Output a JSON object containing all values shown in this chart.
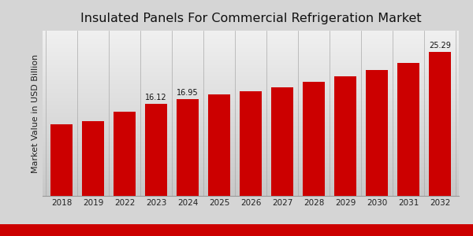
{
  "title": "Insulated Panels For Commercial Refrigeration Market",
  "ylabel": "Market Value in USD Billion",
  "years": [
    2018,
    2019,
    2022,
    2023,
    2024,
    2025,
    2026,
    2027,
    2028,
    2029,
    2030,
    2031,
    2032
  ],
  "values": [
    12.5,
    13.1,
    14.8,
    16.12,
    16.95,
    17.8,
    18.3,
    19.1,
    20.0,
    21.0,
    22.1,
    23.4,
    25.29
  ],
  "bar_color": "#cc0000",
  "bg_top_color": "#d0d0d0",
  "bg_bottom_color": "#f5f5f5",
  "annotated_bars": {
    "2023": "16.12",
    "2024": "16.95",
    "2032": "25.29"
  },
  "bottom_stripe_color": "#cc0000",
  "title_fontsize": 11.5,
  "ylabel_fontsize": 8,
  "tick_fontsize": 7.5,
  "annotation_fontsize": 7
}
